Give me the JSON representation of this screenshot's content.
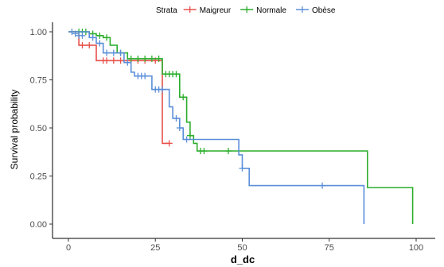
{
  "chart_data": {
    "type": "line",
    "step": true,
    "xlabel": "d_dc",
    "ylabel": "Survival probability",
    "xlim": [
      0,
      100
    ],
    "ylim": [
      0,
      1
    ],
    "x_ticks": [
      0,
      25,
      50,
      75,
      100
    ],
    "y_ticks": [
      0.0,
      0.25,
      0.5,
      0.75,
      1.0
    ],
    "x_tick_labels": [
      "0",
      "25",
      "50",
      "75",
      "100"
    ],
    "y_tick_labels": [
      "0.00",
      "0.25",
      "0.50",
      "0.75",
      "1.00"
    ],
    "grid": false,
    "legend": {
      "title": "Strata",
      "position": "top",
      "entries": [
        "Maigreur",
        "Normale",
        "Obèse"
      ]
    },
    "series": [
      {
        "name": "Maigreur",
        "color": "#e8504a",
        "steps": [
          [
            0,
            1.0
          ],
          [
            3,
            0.93
          ],
          [
            8,
            0.85
          ],
          [
            27,
            0.42
          ],
          [
            29,
            0.42
          ]
        ],
        "censored": [
          [
            4,
            0.93
          ],
          [
            6,
            0.93
          ],
          [
            10,
            0.85
          ],
          [
            11,
            0.85
          ],
          [
            13,
            0.85
          ],
          [
            15,
            0.85
          ],
          [
            18,
            0.85
          ],
          [
            20,
            0.85
          ],
          [
            22,
            0.85
          ],
          [
            25,
            0.85
          ],
          [
            29,
            0.42
          ]
        ]
      },
      {
        "name": "Normale",
        "color": "#2cae2c",
        "steps": [
          [
            0,
            1.0
          ],
          [
            6,
            0.99
          ],
          [
            8,
            0.98
          ],
          [
            10,
            0.97
          ],
          [
            12,
            0.93
          ],
          [
            14,
            0.89
          ],
          [
            17,
            0.86
          ],
          [
            27,
            0.78
          ],
          [
            32,
            0.66
          ],
          [
            34,
            0.53
          ],
          [
            35,
            0.46
          ],
          [
            36,
            0.42
          ],
          [
            37,
            0.38
          ],
          [
            86,
            0.19
          ],
          [
            99,
            0.0
          ]
        ],
        "censored": [
          [
            3,
            1.0
          ],
          [
            4,
            1.0
          ],
          [
            5,
            1.0
          ],
          [
            7,
            0.99
          ],
          [
            9,
            0.98
          ],
          [
            11,
            0.97
          ],
          [
            15,
            0.89
          ],
          [
            18,
            0.86
          ],
          [
            20,
            0.86
          ],
          [
            22,
            0.86
          ],
          [
            24,
            0.86
          ],
          [
            26,
            0.86
          ],
          [
            28,
            0.78
          ],
          [
            29,
            0.78
          ],
          [
            30,
            0.78
          ],
          [
            31,
            0.78
          ],
          [
            33,
            0.66
          ],
          [
            35,
            0.46
          ],
          [
            38,
            0.38
          ],
          [
            39,
            0.38
          ],
          [
            46,
            0.38
          ]
        ]
      },
      {
        "name": "Obèse",
        "color": "#5b8fd9",
        "steps": [
          [
            0,
            1.0
          ],
          [
            6,
            0.97
          ],
          [
            8,
            0.94
          ],
          [
            10,
            0.89
          ],
          [
            16,
            0.84
          ],
          [
            18,
            0.79
          ],
          [
            19,
            0.77
          ],
          [
            24,
            0.7
          ],
          [
            29,
            0.61
          ],
          [
            30,
            0.55
          ],
          [
            32,
            0.5
          ],
          [
            33,
            0.44
          ],
          [
            34,
            0.44
          ],
          [
            49,
            0.36
          ],
          [
            50,
            0.29
          ],
          [
            52,
            0.2
          ],
          [
            85,
            0.0
          ]
        ],
        "censored": [
          [
            1,
            1.0
          ],
          [
            2,
            0.99
          ],
          [
            3,
            0.98
          ],
          [
            4,
            0.98
          ],
          [
            7,
            0.97
          ],
          [
            9,
            0.94
          ],
          [
            11,
            0.89
          ],
          [
            13,
            0.89
          ],
          [
            15,
            0.89
          ],
          [
            17,
            0.84
          ],
          [
            20,
            0.77
          ],
          [
            21,
            0.77
          ],
          [
            22,
            0.77
          ],
          [
            25,
            0.7
          ],
          [
            26,
            0.7
          ],
          [
            27,
            0.7
          ],
          [
            31,
            0.55
          ],
          [
            32,
            0.5
          ],
          [
            34,
            0.44
          ],
          [
            50,
            0.29
          ],
          [
            73,
            0.2
          ]
        ]
      }
    ]
  }
}
